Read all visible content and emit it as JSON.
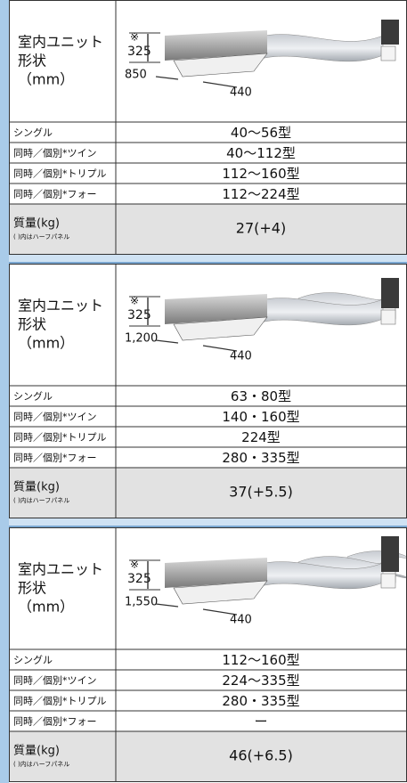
{
  "blocks": [
    {
      "header": [
        "室内ユニット",
        "形状",
        "（mm）"
      ],
      "dims": {
        "note": "※",
        "height": "325",
        "width": "850",
        "depth": "440"
      },
      "rows": [
        {
          "label": "シングル",
          "value": "40〜56型"
        },
        {
          "label": "同時／個別*ツイン",
          "value": "40〜112型"
        },
        {
          "label": "同時／個別*トリプル",
          "value": "112〜160型"
        },
        {
          "label": "同時／個別*フォー",
          "value": "112〜224型"
        }
      ],
      "mass": {
        "label": "質量(kg)",
        "note": "( )内はハーフパネル",
        "value": "27(+4)"
      }
    },
    {
      "header": [
        "室内ユニット",
        "形状",
        "（mm）"
      ],
      "dims": {
        "note": "※",
        "height": "325",
        "width": "1,200",
        "depth": "440"
      },
      "rows": [
        {
          "label": "シングル",
          "value": "63・80型"
        },
        {
          "label": "同時／個別*ツイン",
          "value": "140・160型"
        },
        {
          "label": "同時／個別*トリプル",
          "value": "224型"
        },
        {
          "label": "同時／個別*フォー",
          "value": "280・335型"
        }
      ],
      "mass": {
        "label": "質量(kg)",
        "note": "( )内はハーフパネル",
        "value": "37(+5.5)"
      }
    },
    {
      "header": [
        "室内ユニット",
        "形状",
        "（mm）"
      ],
      "dims": {
        "note": "※",
        "height": "325",
        "width": "1,550",
        "depth": "440"
      },
      "rows": [
        {
          "label": "シングル",
          "value": "112〜160型"
        },
        {
          "label": "同時／個別*ツイン",
          "value": "224〜335型"
        },
        {
          "label": "同時／個別*トリプル",
          "value": "280・335型"
        },
        {
          "label": "同時／個別*フォー",
          "value": "ー"
        }
      ],
      "mass": {
        "label": "質量(kg)",
        "note": "( )内はハーフパネル",
        "value": "46(+6.5)"
      }
    }
  ]
}
